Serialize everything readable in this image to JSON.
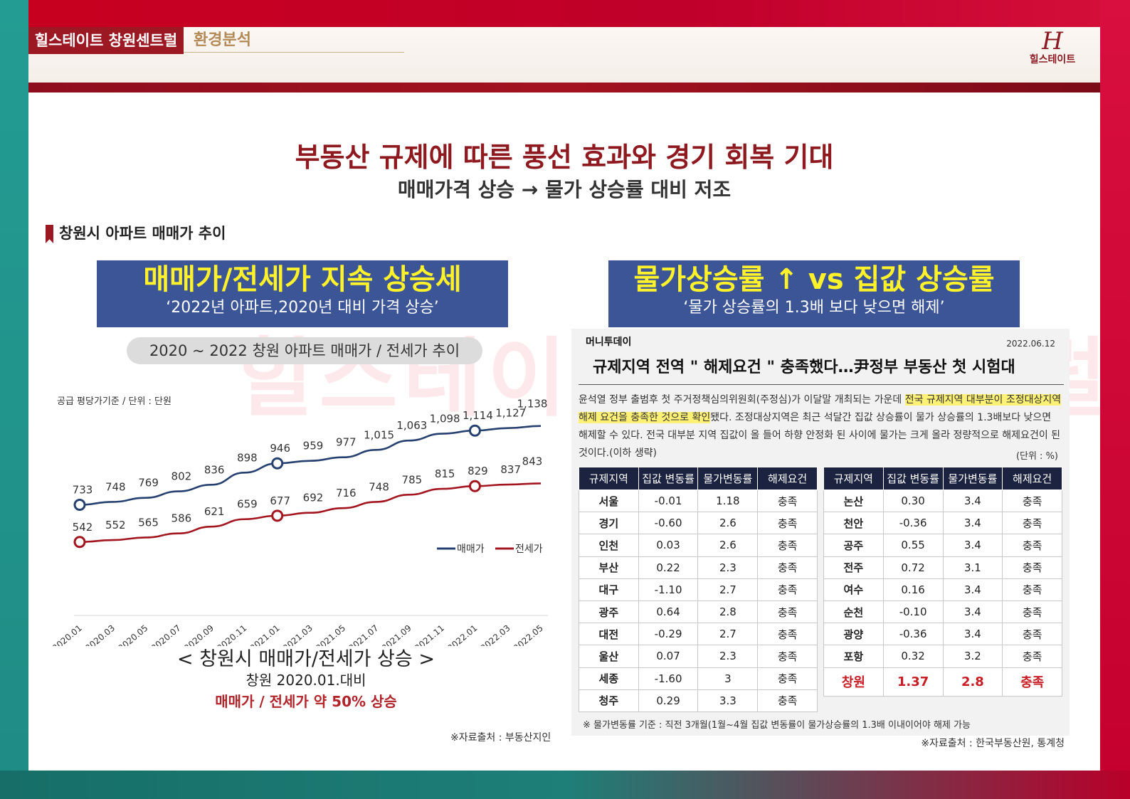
{
  "header": {
    "brand_tab": "힐스테이트 창원센트럴",
    "section_tab": "환경분석",
    "logo_mark": "H",
    "logo_text": "힐스테이트"
  },
  "title": "부동산 규제에 따른 풍선 효과와 경기 회복 기대",
  "subtitle": "매매가격 상승 → 물가 상승률 대비 저조",
  "section_heading": "창원시 아파트 매매가 추이",
  "left_box": {
    "headline": "매매가/전세가 지속 상승세",
    "sub": "‘2022년 아파트,2020년 대비 가격 상승’"
  },
  "right_box": {
    "headline": "물가상승률 ↑ vs 집값 상승률",
    "sub": "‘물가 상승률의 1.3배 보다 낮으면 해제’"
  },
  "chart_pill": "2020 ~ 2022 창원 아파트 매매가 / 전세가 추이",
  "chart_unit": "공급 평당가기준 / 단위 : 단원",
  "chart_data": {
    "type": "line",
    "x": [
      "2020.01",
      "2020.03",
      "2020.05",
      "2020.07",
      "2020.09",
      "2020.11",
      "2021.01",
      "2021.03",
      "2021.05",
      "2021.07",
      "2021.09",
      "2021.11",
      "2022.01",
      "2022.03",
      "2022.05"
    ],
    "series": [
      {
        "name": "매매가",
        "color": "#26406f",
        "values": [
          733,
          748,
          769,
          802,
          836,
          898,
          946,
          959,
          977,
          1015,
          1063,
          1098,
          1114,
          1127,
          1138
        ]
      },
      {
        "name": "전세가",
        "color": "#a3151f",
        "values": [
          542,
          552,
          565,
          586,
          621,
          659,
          677,
          692,
          716,
          748,
          785,
          815,
          829,
          837,
          843
        ]
      }
    ],
    "markers": [
      "2020.01",
      "2021.01",
      "2022.01"
    ],
    "ylim": [
      300,
      1250
    ]
  },
  "caption": {
    "line1": "< 창원시 매매가/전세가 상승 >",
    "line2": "창원 2020.01.대비",
    "line3": "매매가 / 전세가 약 50% 상승"
  },
  "source_left": "※자료출처 : 부동산지인",
  "news": {
    "outlet": "머니투데이",
    "date": "2022.06.12",
    "headline": "규제지역 전역 \" 해제요건 \" 충족했다…尹정부 부동산 첫 시험대",
    "body_a": "윤석열 정부 출범후 첫 주거정책심의위원회(주정심)가 이달말 개최되는 가운데 ",
    "body_hl": "전국 규제지역 대부분이 조정대상지역 해제 요건을 충족한 것으로 확인",
    "body_b": "됐다. 조정대상지역은 최근 석달간 집값 상승률이 물가 상승률의 1.3배보다 낮으면 해제할 수 있다. 전국 대부분 지역 집값이 올 들어 하향 안정화 된 사이에 물가는 크게 올라 정량적으로 해제요건이 된 것이다.(이하 생략)",
    "unit": "(단위 : %)",
    "columns": [
      "규제지역",
      "집값 변동률",
      "물가변동률",
      "해제요건"
    ],
    "table_left": [
      [
        "서울",
        "-0.01",
        "1.18",
        "충족"
      ],
      [
        "경기",
        "-0.60",
        "2.6",
        "충족"
      ],
      [
        "인천",
        "0.03",
        "2.6",
        "충족"
      ],
      [
        "부산",
        "0.22",
        "2.3",
        "충족"
      ],
      [
        "대구",
        "-1.10",
        "2.7",
        "충족"
      ],
      [
        "광주",
        "0.64",
        "2.8",
        "충족"
      ],
      [
        "대전",
        "-0.29",
        "2.7",
        "충족"
      ],
      [
        "울산",
        "0.07",
        "2.3",
        "충족"
      ],
      [
        "세종",
        "-1.60",
        "3",
        "충족"
      ],
      [
        "청주",
        "0.29",
        "3.3",
        "충족"
      ]
    ],
    "table_right": [
      [
        "논산",
        "0.30",
        "3.4",
        "충족"
      ],
      [
        "천안",
        "-0.36",
        "3.4",
        "충족"
      ],
      [
        "공주",
        "0.55",
        "3.4",
        "충족"
      ],
      [
        "전주",
        "0.72",
        "3.1",
        "충족"
      ],
      [
        "여수",
        "0.16",
        "3.4",
        "충족"
      ],
      [
        "순천",
        "-0.10",
        "3.4",
        "충족"
      ],
      [
        "광양",
        "-0.36",
        "3.4",
        "충족"
      ],
      [
        "포항",
        "0.32",
        "3.2",
        "충족"
      ]
    ],
    "table_right_highlight": [
      "창원",
      "1.37",
      "2.8",
      "충족"
    ],
    "note": "※ 물가변동률 기준 : 직전 3개월(1월~4월 집값 변동률이 물가상승률의 1.3배 이내이어야 해제 가능"
  },
  "source_right": "※자료출처 : 한국부동산원, 통계청",
  "watermark": "힐스테이트 창원센트럴"
}
